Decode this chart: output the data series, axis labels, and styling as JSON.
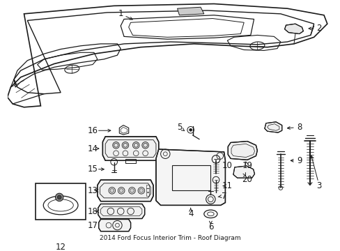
{
  "title": "2014 Ford Focus Interior Trim - Roof Diagram",
  "bg_color": "#ffffff",
  "line_color": "#1a1a1a",
  "fig_width": 4.89,
  "fig_height": 3.6,
  "dpi": 100
}
